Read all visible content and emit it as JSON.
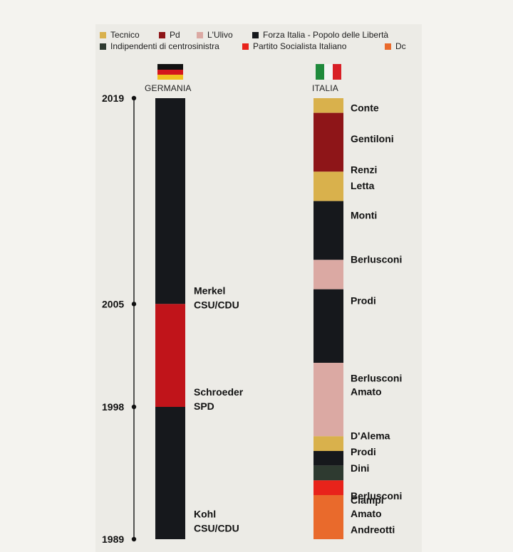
{
  "legend": [
    {
      "label": "Tecnico",
      "color": "#d9b14c"
    },
    {
      "label": "Pd",
      "color": "#8e1518"
    },
    {
      "label": "L'Ulivo",
      "color": "#dba9a3"
    },
    {
      "label": "Forza Italia - Popolo delle Libertà",
      "color": "#16181c"
    },
    {
      "label": "Indipendenti di centrosinistra",
      "color": "#2e3a30"
    },
    {
      "label": "Partito Socialista Italiano",
      "color": "#e8231b"
    },
    {
      "label": "Dc",
      "color": "#e96a2c"
    }
  ],
  "countries": {
    "germany": {
      "name": "GERMANIA",
      "flag_colors": [
        "#111111",
        "#d4161d",
        "#f0c020"
      ]
    },
    "italy": {
      "name": "ITALIA",
      "flag_colors": [
        "#1f8a3c",
        "#f4f4f4",
        "#d81f26"
      ]
    }
  },
  "chart_data": [
    {
      "type": "bar",
      "title": "GERMANIA",
      "ylim": [
        1989,
        2019
      ],
      "years": [
        {
          "value": 2019,
          "label": "2019"
        },
        {
          "value": 2005,
          "label": "2005"
        },
        {
          "value": 1998,
          "label": "1998"
        },
        {
          "value": 1989,
          "label": "1989"
        }
      ],
      "segments": [
        {
          "from": 2005,
          "to": 2019,
          "color": "#16181c"
        },
        {
          "from": 1998,
          "to": 2005,
          "color": "#c0141a"
        },
        {
          "from": 1989,
          "to": 1998,
          "color": "#16181c"
        }
      ],
      "labels": [
        {
          "at": 2004.7,
          "lines": [
            "Merkel",
            "CSU/CDU"
          ]
        },
        {
          "at": 1997.8,
          "lines": [
            "Schroeder",
            "SPD"
          ]
        },
        {
          "at": 1989.5,
          "lines": [
            "Kohl",
            "CSU/CDU"
          ]
        }
      ]
    },
    {
      "type": "bar",
      "title": "ITALIA",
      "ylim": [
        1989,
        2019
      ],
      "segments": [
        {
          "from": 2018.0,
          "to": 2019.0,
          "color": "#d9b14c"
        },
        {
          "from": 2014.0,
          "to": 2018.0,
          "color": "#8e1518"
        },
        {
          "from": 2012.0,
          "to": 2014.0,
          "color": "#d9b14c"
        },
        {
          "from": 2008.0,
          "to": 2012.0,
          "color": "#16181c"
        },
        {
          "from": 2006.0,
          "to": 2008.0,
          "color": "#dba9a3"
        },
        {
          "from": 2001.0,
          "to": 2006.0,
          "color": "#16181c"
        },
        {
          "from": 1996.0,
          "to": 2001.0,
          "color": "#dba9a3"
        },
        {
          "from": 1995.0,
          "to": 1996.0,
          "color": "#d9b14c"
        },
        {
          "from": 1994.0,
          "to": 1995.0,
          "color": "#16181c"
        },
        {
          "from": 1993.0,
          "to": 1994.0,
          "color": "#2e3a30"
        },
        {
          "from": 1992.0,
          "to": 1993.0,
          "color": "#e8231b"
        },
        {
          "from": 1989.0,
          "to": 1992.0,
          "color": "#e96a2c"
        }
      ],
      "labels": [
        {
          "at": 2018.1,
          "lines": [
            "Conte"
          ]
        },
        {
          "at": 2016.0,
          "lines": [
            "Gentiloni"
          ]
        },
        {
          "at": 2013.9,
          "lines": [
            "Renzi"
          ]
        },
        {
          "at": 2012.8,
          "lines": [
            "Letta"
          ]
        },
        {
          "at": 2010.8,
          "lines": [
            "Monti"
          ]
        },
        {
          "at": 2007.8,
          "lines": [
            "Berlusconi"
          ]
        },
        {
          "at": 2005.0,
          "lines": [
            "Prodi"
          ]
        },
        {
          "at": 1998.8,
          "lines": [
            "Berlusconi",
            "Amato"
          ]
        },
        {
          "at": 1995.8,
          "lines": [
            "D'Alema"
          ]
        },
        {
          "at": 1994.7,
          "lines": [
            "Prodi"
          ]
        },
        {
          "at": 1993.6,
          "lines": [
            "Dini"
          ]
        },
        {
          "at": 1991.7,
          "lines": [
            "Berlusconi"
          ]
        },
        {
          "at": 1990.5,
          "lines": [
            "Ciampi",
            "Amato"
          ]
        },
        {
          "at": 1989.4,
          "lines": [
            "Andreotti"
          ]
        }
      ]
    }
  ]
}
